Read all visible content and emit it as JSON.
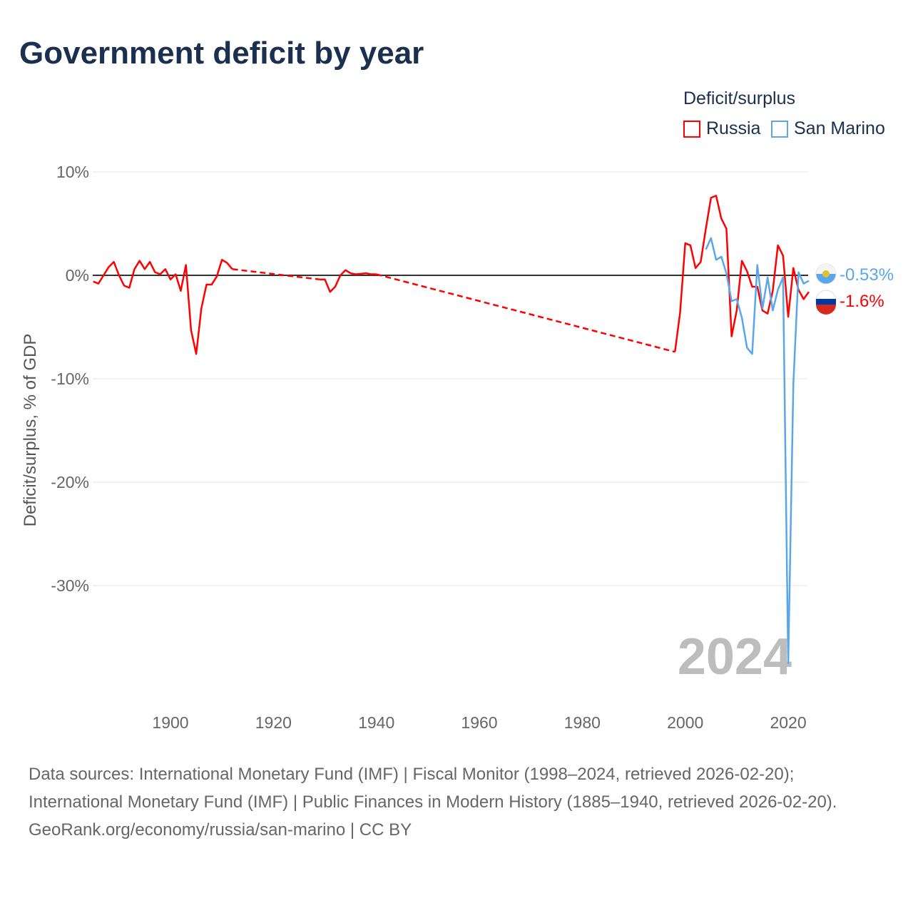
{
  "title": "Government deficit by year",
  "legend": {
    "title": "Deficit/surplus",
    "items": [
      {
        "name": "Russia",
        "color": "#ff0000"
      },
      {
        "name": "San Marino",
        "color": "#5aa6ec"
      }
    ]
  },
  "chart_data": {
    "type": "line",
    "title": "Government deficit by year",
    "ylabel": "Deficit/surplus, % of GDP",
    "xlabel": "",
    "xlim": [
      1885,
      2024
    ],
    "ylim": [
      -38,
      10
    ],
    "x_ticks": [
      1900,
      1920,
      1940,
      1960,
      1980,
      2000,
      2020
    ],
    "y_ticks": [
      {
        "v": 10,
        "label": "10%"
      },
      {
        "v": 0,
        "label": "0%"
      },
      {
        "v": -10,
        "label": "-10%"
      },
      {
        "v": -20,
        "label": "-20%"
      },
      {
        "v": -30,
        "label": "-30%"
      }
    ],
    "grid": true,
    "year_watermark": "2024",
    "series": [
      {
        "name": "Russia",
        "color": "#ff0000",
        "end_label": "-1.6%",
        "segments": [
          {
            "style": "solid",
            "points": [
              [
                1885,
                -0.6
              ],
              [
                1886,
                -0.8
              ],
              [
                1887,
                0
              ],
              [
                1888,
                0.8
              ],
              [
                1889,
                1.3
              ],
              [
                1890,
                0
              ],
              [
                1891,
                -1
              ],
              [
                1892,
                -1.2
              ],
              [
                1893,
                0.6
              ],
              [
                1894,
                1.4
              ],
              [
                1895,
                0.6
              ],
              [
                1896,
                1.3
              ],
              [
                1897,
                0.3
              ],
              [
                1898,
                0.1
              ],
              [
                1899,
                0.6
              ],
              [
                1900,
                -0.4
              ],
              [
                1901,
                0.1
              ],
              [
                1902,
                -1.5
              ],
              [
                1903,
                1.0
              ],
              [
                1904,
                -5.3
              ],
              [
                1905,
                -7.6
              ],
              [
                1906,
                -3.2
              ],
              [
                1907,
                -0.9
              ],
              [
                1908,
                -0.9
              ],
              [
                1909,
                -0.1
              ],
              [
                1910,
                1.5
              ],
              [
                1911,
                1.2
              ],
              [
                1912,
                0.6
              ]
            ]
          },
          {
            "style": "dashed",
            "points": [
              [
                1912,
                0.6
              ],
              [
                1929,
                -0.4
              ]
            ]
          },
          {
            "style": "solid",
            "points": [
              [
                1929,
                -0.4
              ],
              [
                1930,
                -0.4
              ],
              [
                1931,
                -1.6
              ],
              [
                1932,
                -1.1
              ],
              [
                1933,
                0
              ],
              [
                1934,
                0.5
              ],
              [
                1935,
                0.2
              ],
              [
                1936,
                0.1
              ],
              [
                1937,
                0.15
              ],
              [
                1938,
                0.2
              ],
              [
                1939,
                0.1
              ],
              [
                1940,
                0.1
              ]
            ]
          },
          {
            "style": "dashed",
            "points": [
              [
                1940,
                0.1
              ],
              [
                1998,
                -7.4
              ]
            ]
          },
          {
            "style": "solid",
            "points": [
              [
                1998,
                -7.4
              ],
              [
                1999,
                -3.6
              ],
              [
                2000,
                3.1
              ],
              [
                2001,
                2.9
              ],
              [
                2002,
                0.7
              ],
              [
                2003,
                1.3
              ],
              [
                2004,
                4.5
              ],
              [
                2005,
                7.5
              ],
              [
                2006,
                7.7
              ],
              [
                2007,
                5.5
              ],
              [
                2008,
                4.5
              ],
              [
                2009,
                -5.9
              ],
              [
                2010,
                -3.4
              ],
              [
                2011,
                1.4
              ],
              [
                2012,
                0.4
              ],
              [
                2013,
                -1.1
              ],
              [
                2014,
                -1.1
              ],
              [
                2015,
                -3.4
              ],
              [
                2016,
                -3.7
              ],
              [
                2017,
                -1.5
              ],
              [
                2018,
                2.9
              ],
              [
                2019,
                1.9
              ],
              [
                2020,
                -4.0
              ],
              [
                2021,
                0.7
              ],
              [
                2022,
                -1.4
              ],
              [
                2023,
                -2.3
              ],
              [
                2024,
                -1.6
              ]
            ]
          }
        ]
      },
      {
        "name": "San Marino",
        "color": "#5aa6ec",
        "end_label": "-0.53%",
        "segments": [
          {
            "style": "solid",
            "points": [
              [
                2004,
                2.5
              ],
              [
                2005,
                3.6
              ],
              [
                2006,
                1.5
              ],
              [
                2007,
                1.8
              ],
              [
                2008,
                0.2
              ],
              [
                2009,
                -2.5
              ],
              [
                2010,
                -2.3
              ],
              [
                2011,
                -4.1
              ],
              [
                2012,
                -7.0
              ],
              [
                2013,
                -7.6
              ],
              [
                2014,
                1.0
              ],
              [
                2015,
                -3.2
              ],
              [
                2016,
                -0.2
              ],
              [
                2017,
                -3.4
              ],
              [
                2018,
                -1.4
              ],
              [
                2019,
                -0.2
              ],
              [
                2020,
                -37.5
              ],
              [
                2021,
                -10.5
              ],
              [
                2022,
                0.3
              ],
              [
                2023,
                -0.8
              ],
              [
                2024,
                -0.53
              ]
            ]
          }
        ]
      }
    ]
  },
  "footer": {
    "sources": "Data sources: International Monetary Fund (IMF) | Fiscal Monitor (1998–2024, retrieved 2026-02-20); International Monetary Fund (IMF) | Public Finances in Modern History (1885–1940, retrieved 2026-02-20).",
    "link": "GeoRank.org/economy/russia/san-marino | CC BY"
  }
}
